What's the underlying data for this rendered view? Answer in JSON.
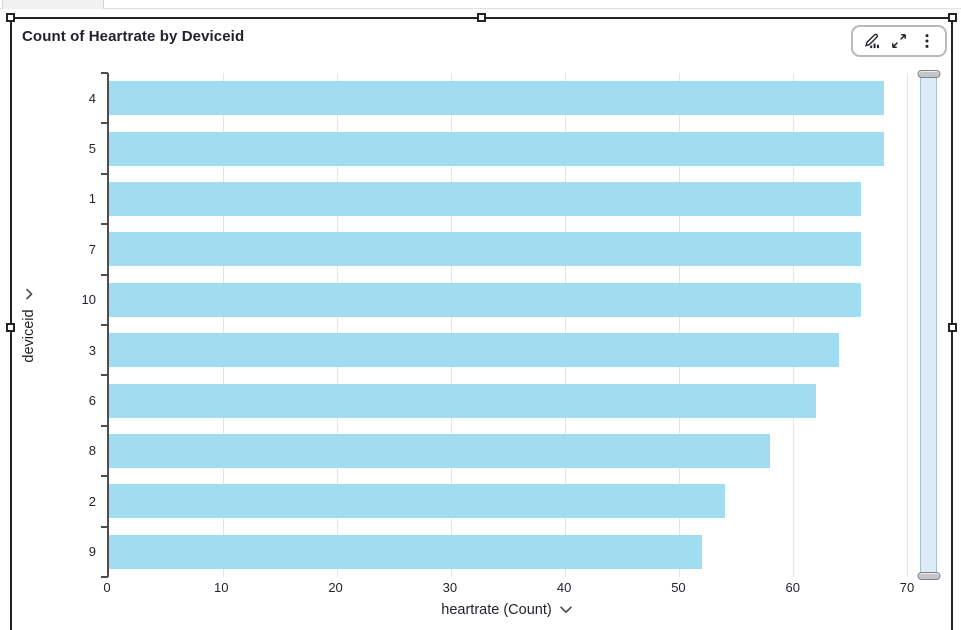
{
  "widget": {
    "toolbar": {
      "buttons": [
        {
          "label": "edit-visual",
          "icon": "pencil-chart-icon"
        },
        {
          "label": "maximize",
          "icon": "expand-diagonal-icon"
        },
        {
          "label": "menu",
          "icon": "kebab-menu-icon"
        }
      ]
    }
  },
  "chart_data": {
    "type": "bar",
    "orientation": "horizontal",
    "title": "Count of Heartrate by Deviceid",
    "categories": [
      "4",
      "5",
      "1",
      "7",
      "10",
      "3",
      "6",
      "8",
      "2",
      "9"
    ],
    "values": [
      68,
      68,
      66,
      66,
      66,
      64,
      62,
      58,
      54,
      52
    ],
    "xlabel": "heartrate (Count)",
    "ylabel": "deviceid",
    "xlim": [
      0,
      70
    ],
    "xticks": [
      0,
      10,
      20,
      30,
      40,
      50,
      60,
      70
    ],
    "grid": "vertical",
    "legend": "none",
    "bar_color": "#a0ddf0",
    "axis_color": "#4d4d4d",
    "gridline_color": "#e4e4e4",
    "selection_border_color": "#242424"
  }
}
